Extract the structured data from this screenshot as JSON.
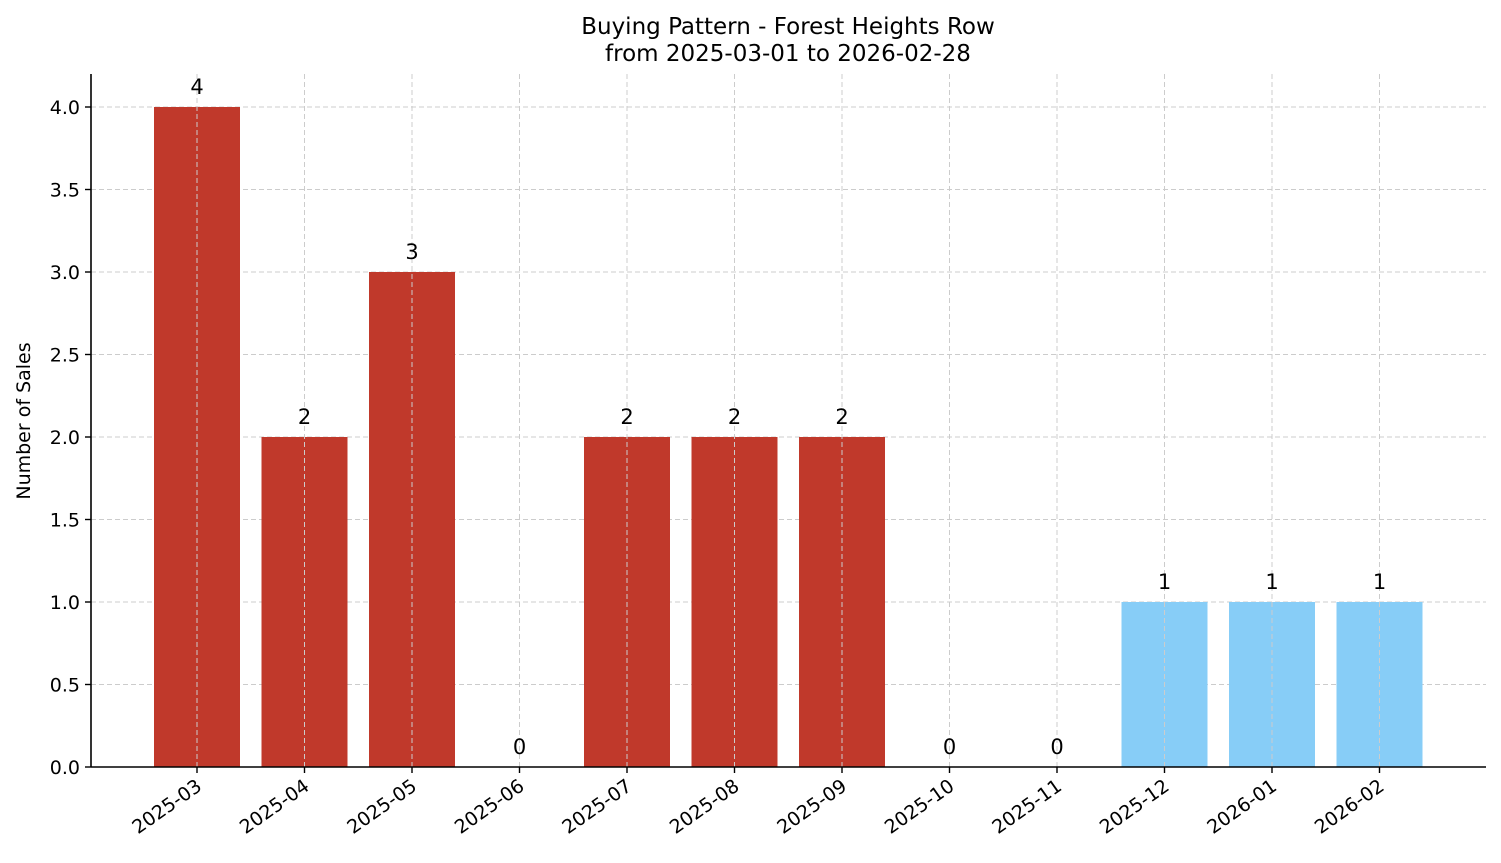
{
  "chart_data": {
    "type": "bar",
    "title": "Buying Pattern - Forest Heights Row",
    "subtitle": "from 2025-03-01 to 2026-02-28",
    "xlabel": "",
    "ylabel": "Number of Sales",
    "categories": [
      "2025-03",
      "2025-04",
      "2025-05",
      "2025-06",
      "2025-07",
      "2025-08",
      "2025-09",
      "2025-10",
      "2025-11",
      "2025-12",
      "2026-01",
      "2026-02"
    ],
    "values": [
      4,
      2,
      3,
      0,
      2,
      2,
      2,
      0,
      0,
      1,
      1,
      1
    ],
    "colors": [
      "#c0392b",
      "#c0392b",
      "#c0392b",
      "#c0392b",
      "#c0392b",
      "#c0392b",
      "#c0392b",
      "#c0392b",
      "#c0392b",
      "#87cdf7",
      "#87cdf7",
      "#87cdf7"
    ],
    "ylim": [
      0,
      4.2
    ],
    "yticks": [
      0.0,
      0.5,
      1.0,
      1.5,
      2.0,
      2.5,
      3.0,
      3.5,
      4.0
    ],
    "ytick_labels": [
      "0.0",
      "0.5",
      "1.0",
      "1.5",
      "2.0",
      "2.5",
      "3.0",
      "3.5",
      "4.0"
    ],
    "data_labels": [
      "4",
      "2",
      "3",
      "0",
      "2",
      "2",
      "2",
      "0",
      "0",
      "1",
      "1",
      "1"
    ],
    "grid": true
  }
}
